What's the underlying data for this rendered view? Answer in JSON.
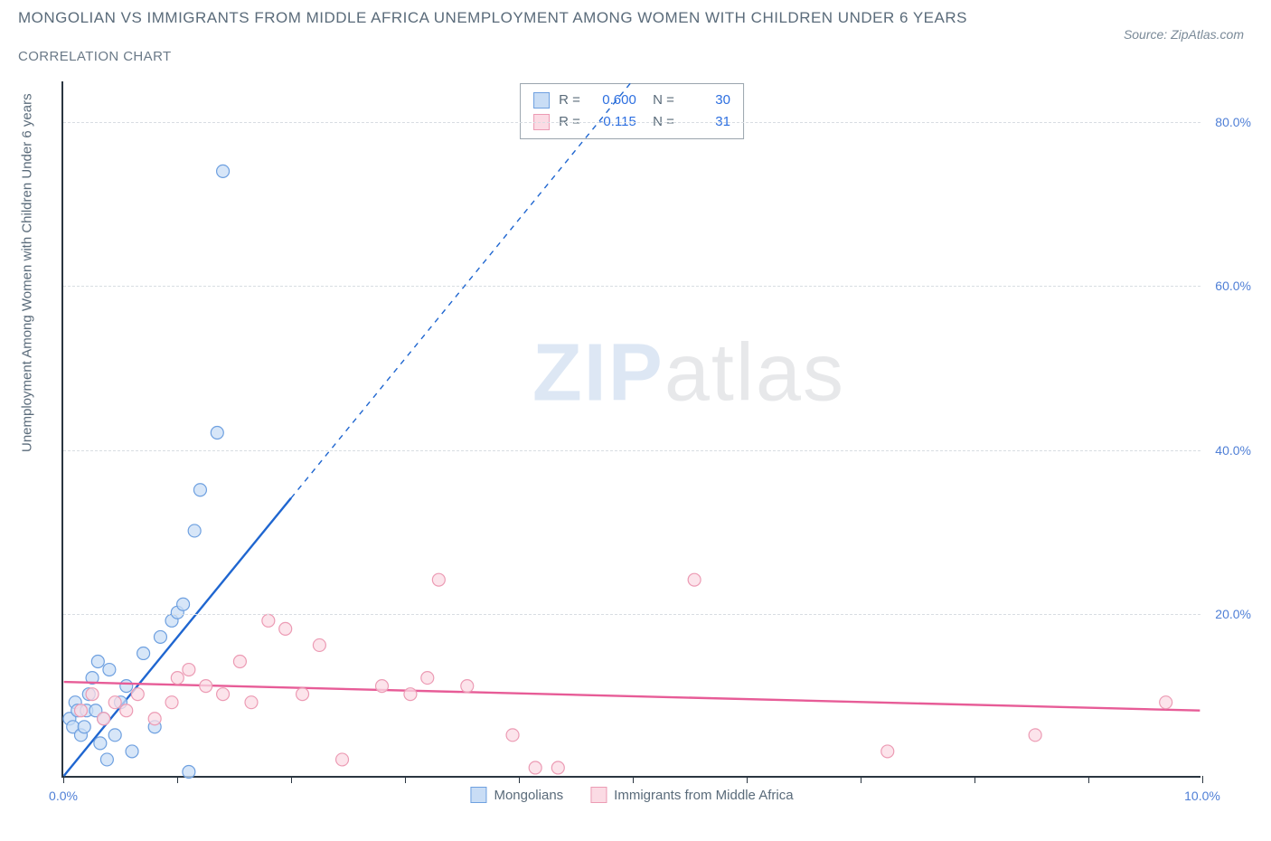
{
  "title": "MONGOLIAN VS IMMIGRANTS FROM MIDDLE AFRICA UNEMPLOYMENT AMONG WOMEN WITH CHILDREN UNDER 6 YEARS",
  "subtitle": "CORRELATION CHART",
  "source": "Source: ZipAtlas.com",
  "y_axis_label": "Unemployment Among Women with Children Under 6 years",
  "watermark_a": "ZIP",
  "watermark_b": "atlas",
  "chart": {
    "type": "scatter",
    "background_color": "#ffffff",
    "grid_color": "#d8dde2",
    "axis_color": "#2a3540",
    "tick_label_color": "#4f7fd6",
    "text_color": "#5a6b7a",
    "xlim": [
      0,
      10
    ],
    "ylim": [
      0,
      85
    ],
    "x_ticks": [
      0.0,
      1.0,
      2.0,
      3.0,
      4.0,
      5.0,
      6.0,
      7.0,
      8.0,
      9.0,
      10.0
    ],
    "x_tick_labels": [
      "0.0%",
      "",
      "",
      "",
      "",
      "",
      "",
      "",
      "",
      "",
      "10.0%"
    ],
    "y_ticks": [
      20,
      40,
      60,
      80
    ],
    "y_tick_labels": [
      "20.0%",
      "40.0%",
      "60.0%",
      "80.0%"
    ],
    "marker_radius": 7,
    "marker_stroke_width": 1.2,
    "trend_line_width": 2.4,
    "series": [
      {
        "name": "Mongolians",
        "fill": "#c9ddf5",
        "stroke": "#6ea0e0",
        "trend_color": "#1f66d0",
        "r_value": "0.600",
        "n_value": "30",
        "trend": {
          "x1": 0,
          "y1": 0,
          "x2": 5,
          "y2": 85,
          "solid_until_x": 2.0
        },
        "points": [
          [
            0.05,
            7
          ],
          [
            0.08,
            6
          ],
          [
            0.1,
            9
          ],
          [
            0.12,
            8
          ],
          [
            0.15,
            5
          ],
          [
            0.18,
            6
          ],
          [
            0.2,
            8
          ],
          [
            0.22,
            10
          ],
          [
            0.25,
            12
          ],
          [
            0.3,
            14
          ],
          [
            0.35,
            7
          ],
          [
            0.4,
            13
          ],
          [
            0.45,
            5
          ],
          [
            0.5,
            9
          ],
          [
            0.55,
            11
          ],
          [
            0.6,
            3
          ],
          [
            0.7,
            15
          ],
          [
            0.8,
            6
          ],
          [
            0.85,
            17
          ],
          [
            0.95,
            19
          ],
          [
            1.0,
            20
          ],
          [
            1.05,
            21
          ],
          [
            1.1,
            0.5
          ],
          [
            1.15,
            30
          ],
          [
            1.2,
            35
          ],
          [
            1.35,
            42
          ],
          [
            1.4,
            74
          ],
          [
            0.32,
            4
          ],
          [
            0.38,
            2
          ],
          [
            0.28,
            8
          ]
        ]
      },
      {
        "name": "Immigrants from Middle Africa",
        "fill": "#fbdbe4",
        "stroke": "#ec9bb4",
        "trend_color": "#e75c97",
        "r_value": "-0.115",
        "n_value": "31",
        "trend": {
          "x1": 0,
          "y1": 11.5,
          "x2": 10,
          "y2": 8.0,
          "solid_until_x": 10
        },
        "points": [
          [
            0.15,
            8
          ],
          [
            0.25,
            10
          ],
          [
            0.35,
            7
          ],
          [
            0.45,
            9
          ],
          [
            0.55,
            8
          ],
          [
            0.65,
            10
          ],
          [
            0.8,
            7
          ],
          [
            0.95,
            9
          ],
          [
            1.1,
            13
          ],
          [
            1.25,
            11
          ],
          [
            1.4,
            10
          ],
          [
            1.55,
            14
          ],
          [
            1.65,
            9
          ],
          [
            1.8,
            19
          ],
          [
            1.95,
            18
          ],
          [
            2.1,
            10
          ],
          [
            2.25,
            16
          ],
          [
            2.45,
            2
          ],
          [
            2.8,
            11
          ],
          [
            3.05,
            10
          ],
          [
            3.2,
            12
          ],
          [
            3.3,
            24
          ],
          [
            3.55,
            11
          ],
          [
            3.95,
            5
          ],
          [
            4.15,
            1
          ],
          [
            4.35,
            1
          ],
          [
            5.55,
            24
          ],
          [
            7.25,
            3
          ],
          [
            8.55,
            5
          ],
          [
            9.7,
            9
          ],
          [
            1.0,
            12
          ]
        ]
      }
    ],
    "legend": [
      {
        "label": "Mongolians",
        "fill": "#c9ddf5",
        "stroke": "#6ea0e0"
      },
      {
        "label": "Immigrants from Middle Africa",
        "fill": "#fbdbe4",
        "stroke": "#ec9bb4"
      }
    ]
  }
}
